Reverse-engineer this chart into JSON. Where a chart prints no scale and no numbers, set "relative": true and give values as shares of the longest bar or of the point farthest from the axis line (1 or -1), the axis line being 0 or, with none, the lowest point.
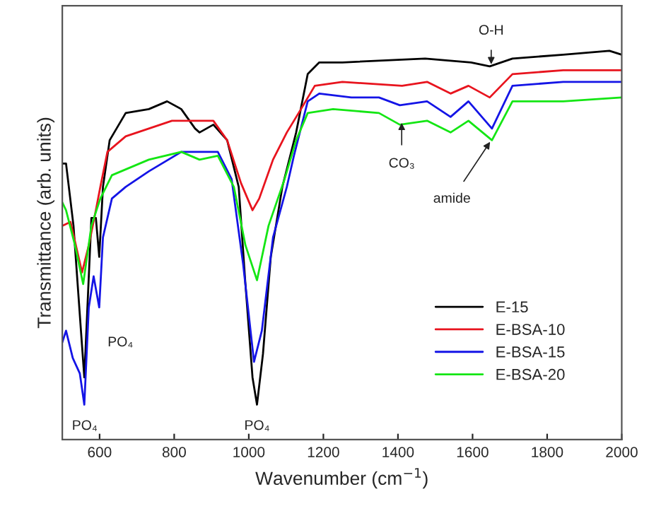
{
  "chart_data": {
    "type": "line",
    "relative": true,
    "xlabel": "Wavenumber (cm$^{−1}$)",
    "ylabel": "Transmittance (arb. units)",
    "xlim": [
      500,
      2000
    ],
    "xticks": [
      600,
      800,
      1000,
      1200,
      1400,
      1600,
      1800,
      2000
    ],
    "tick_labels": "x",
    "grid": false,
    "legend": "lower right",
    "marker": "none",
    "line_style": "solid",
    "series": [
      {
        "name": "E-15",
        "color": "#000000",
        "x": [
          500,
          510,
          530,
          550,
          559,
          578,
          590,
          599,
          609,
          627,
          670,
          732,
          781,
          819,
          856,
          868,
          905,
          942,
          973,
          991,
          1010,
          1022,
          1038,
          1059,
          1090,
          1127,
          1158,
          1189,
          1251,
          1473,
          1596,
          1646,
          1707,
          1843,
          1967,
          2000
        ],
        "values": [
          0.71,
          0.71,
          0.55,
          0.28,
          0.16,
          0.57,
          0.57,
          0.47,
          0.65,
          0.77,
          0.84,
          0.85,
          0.87,
          0.85,
          0.8,
          0.79,
          0.81,
          0.77,
          0.65,
          0.4,
          0.16,
          0.09,
          0.22,
          0.47,
          0.65,
          0.79,
          0.94,
          0.97,
          0.97,
          0.98,
          0.97,
          0.96,
          0.98,
          0.99,
          1.0,
          0.99
        ]
      },
      {
        "name": "E-BSA-10",
        "color": "#e8141e",
        "x": [
          500,
          522,
          553,
          571,
          590,
          602,
          621,
          670,
          794,
          905,
          942,
          979,
          1010,
          1028,
          1065,
          1102,
          1140,
          1177,
          1251,
          1411,
          1478,
          1541,
          1589,
          1646,
          1707,
          1843,
          2000
        ],
        "values": [
          0.55,
          0.56,
          0.43,
          0.5,
          0.59,
          0.65,
          0.74,
          0.78,
          0.82,
          0.82,
          0.77,
          0.66,
          0.59,
          0.62,
          0.72,
          0.79,
          0.85,
          0.91,
          0.92,
          0.91,
          0.92,
          0.89,
          0.91,
          0.88,
          0.94,
          0.95,
          0.95
        ]
      },
      {
        "name": "E-BSA-15",
        "color": "#1414e6",
        "x": [
          500,
          510,
          528,
          547,
          559,
          571,
          584,
          599,
          609,
          633,
          670,
          732,
          819,
          917,
          954,
          985,
          1014,
          1035,
          1065,
          1102,
          1121,
          1158,
          1189,
          1275,
          1349,
          1405,
          1478,
          1541,
          1589,
          1652,
          1707,
          1843,
          2000
        ],
        "values": [
          0.25,
          0.28,
          0.21,
          0.17,
          0.09,
          0.34,
          0.42,
          0.34,
          0.52,
          0.62,
          0.65,
          0.69,
          0.74,
          0.74,
          0.67,
          0.45,
          0.2,
          0.28,
          0.52,
          0.65,
          0.73,
          0.87,
          0.89,
          0.88,
          0.88,
          0.86,
          0.87,
          0.83,
          0.87,
          0.8,
          0.91,
          0.92,
          0.92
        ]
      },
      {
        "name": "E-BSA-20",
        "color": "#14e614",
        "x": [
          500,
          510,
          534,
          556,
          578,
          602,
          633,
          732,
          819,
          868,
          917,
          960,
          991,
          1022,
          1053,
          1096,
          1127,
          1158,
          1226,
          1349,
          1405,
          1478,
          1541,
          1589,
          1652,
          1707,
          1843,
          2000
        ],
        "values": [
          0.61,
          0.59,
          0.5,
          0.4,
          0.55,
          0.62,
          0.68,
          0.72,
          0.74,
          0.72,
          0.73,
          0.65,
          0.5,
          0.41,
          0.55,
          0.67,
          0.77,
          0.84,
          0.85,
          0.84,
          0.81,
          0.82,
          0.79,
          0.82,
          0.77,
          0.87,
          0.87,
          0.88
        ]
      }
    ],
    "annotations": [
      {
        "text": "PO₄",
        "x": 560,
        "y": 0.09
      },
      {
        "text": "PO₄",
        "x": 603,
        "y": 0.34
      },
      {
        "text": "PO₄",
        "x": 1022,
        "y": 0.09
      },
      {
        "text": "O-H",
        "x": 1650,
        "y": 0.96
      },
      {
        "text": "CO₃",
        "x": 1410,
        "y": 0.82
      },
      {
        "text": "amide",
        "x": 1650,
        "y": 0.77
      }
    ]
  }
}
